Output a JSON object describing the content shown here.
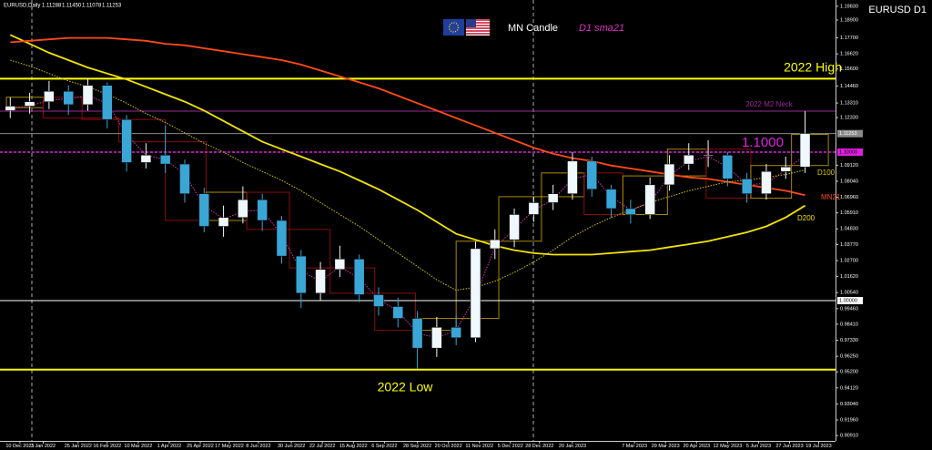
{
  "header": {
    "symbol": "EURUSD,Daily",
    "ohlc": [
      "1.11288",
      "1.11450",
      "1.11078",
      "1.11253"
    ],
    "chart_name": "EURUSD D1",
    "mn_legend": "MN Candle"
  },
  "chart_data": {
    "type": "candlestick",
    "x": [
      -5,
      5,
      15,
      25,
      35,
      45,
      55,
      65,
      75,
      85,
      95,
      105,
      115,
      125,
      135,
      145,
      155,
      165,
      175,
      185,
      195,
      205,
      215,
      225,
      235,
      245,
      255,
      265,
      275,
      285,
      295,
      305,
      315,
      325,
      335,
      345,
      355,
      365,
      375,
      385,
      395,
      405
    ],
    "open": [
      1.128,
      1.131,
      1.134,
      1.141,
      1.132,
      1.145,
      1.122,
      1.093,
      1.098,
      1.092,
      1.072,
      1.05,
      1.056,
      1.068,
      1.054,
      1.03,
      1.005,
      1.021,
      1.028,
      1.004,
      0.996,
      0.988,
      0.968,
      0.982,
      0.975,
      1.035,
      1.041,
      1.058,
      1.066,
      1.072,
      1.094,
      1.075,
      1.062,
      1.058,
      1.078,
      1.092,
      1.098,
      1.098,
      1.082,
      1.072,
      1.087,
      1.09
    ],
    "high": [
      1.137,
      1.14,
      1.148,
      1.145,
      1.15,
      1.147,
      1.125,
      1.106,
      1.118,
      1.095,
      1.076,
      1.064,
      1.077,
      1.072,
      1.057,
      1.034,
      1.026,
      1.037,
      1.031,
      1.009,
      1.002,
      0.993,
      0.989,
      0.99,
      1.04,
      1.048,
      1.062,
      1.07,
      1.078,
      1.1,
      1.097,
      1.078,
      1.068,
      1.083,
      1.098,
      1.106,
      1.108,
      1.1,
      1.086,
      1.092,
      1.097,
      1.1276
    ],
    "low": [
      1.123,
      1.126,
      1.129,
      1.125,
      1.128,
      1.116,
      1.087,
      1.089,
      1.086,
      1.066,
      1.046,
      1.043,
      1.052,
      1.047,
      1.025,
      0.995,
      1.0,
      1.016,
      0.999,
      0.99,
      0.982,
      0.954,
      0.962,
      0.97,
      0.972,
      1.028,
      1.036,
      1.053,
      1.061,
      1.068,
      1.07,
      1.056,
      1.052,
      1.055,
      1.074,
      1.088,
      1.09,
      1.077,
      1.066,
      1.068,
      1.082,
      1.086
    ],
    "close": [
      1.131,
      1.134,
      1.141,
      1.132,
      1.145,
      1.122,
      1.093,
      1.098,
      1.092,
      1.072,
      1.05,
      1.056,
      1.068,
      1.054,
      1.03,
      1.005,
      1.021,
      1.028,
      1.004,
      0.996,
      0.988,
      0.968,
      0.982,
      0.975,
      1.035,
      1.041,
      1.058,
      1.066,
      1.072,
      1.094,
      1.075,
      1.062,
      1.058,
      1.078,
      1.092,
      1.098,
      1.098,
      1.082,
      1.072,
      1.087,
      1.09,
      1.1125
    ],
    "up_color": "#f0f8ff",
    "down_color": "#3aa6d6",
    "series": [
      {
        "name": "D200",
        "color": "#f2e400",
        "style": "solid",
        "values": [
          1.179,
          1.173,
          1.167,
          1.162,
          1.157,
          1.153,
          1.149,
          1.144,
          1.139,
          1.134,
          1.128,
          1.121,
          1.114,
          1.107,
          1.102,
          1.097,
          1.092,
          1.087,
          1.081,
          1.075,
          1.068,
          1.061,
          1.053,
          1.045,
          1.041,
          1.037,
          1.034,
          1.032,
          1.031,
          1.031,
          1.031,
          1.032,
          1.033,
          1.034,
          1.036,
          1.038,
          1.04,
          1.043,
          1.046,
          1.05,
          1.056,
          1.064
        ]
      },
      {
        "name": "MN21",
        "color": "#ff4a1a",
        "style": "solid",
        "values": [
          1.174,
          1.175,
          1.176,
          1.177,
          1.177,
          1.177,
          1.176,
          1.175,
          1.173,
          1.172,
          1.17,
          1.168,
          1.166,
          1.164,
          1.162,
          1.159,
          1.155,
          1.151,
          1.147,
          1.143,
          1.138,
          1.133,
          1.128,
          1.123,
          1.118,
          1.113,
          1.108,
          1.103,
          1.099,
          1.096,
          1.094,
          1.091,
          1.089,
          1.087,
          1.085,
          1.083,
          1.082,
          1.08,
          1.078,
          1.076,
          1.074,
          1.071
        ]
      },
      {
        "name": "D100",
        "color": "#d8c800",
        "style": "dotted",
        "values": [
          1.162,
          1.158,
          1.153,
          1.148,
          1.144,
          1.139,
          1.133,
          1.126,
          1.12,
          1.113,
          1.106,
          1.1,
          1.093,
          1.087,
          1.081,
          1.074,
          1.066,
          1.058,
          1.05,
          1.041,
          1.032,
          1.023,
          1.014,
          1.007,
          1.009,
          1.013,
          1.019,
          1.026,
          1.034,
          1.043,
          1.05,
          1.056,
          1.061,
          1.066,
          1.07,
          1.074,
          1.077,
          1.08,
          1.081,
          1.083,
          1.085,
          1.088
        ]
      },
      {
        "name": "D1 sma21",
        "color": "#e030c0",
        "style": "dotted",
        "values": [
          1.13,
          1.131,
          1.135,
          1.136,
          1.138,
          1.133,
          1.112,
          1.098,
          1.095,
          1.085,
          1.064,
          1.055,
          1.06,
          1.061,
          1.044,
          1.02,
          1.013,
          1.023,
          1.015,
          1.001,
          0.993,
          0.978,
          0.975,
          0.98,
          1.003,
          1.036,
          1.048,
          1.061,
          1.068,
          1.082,
          1.085,
          1.07,
          1.061,
          1.066,
          1.084,
          1.094,
          1.097,
          1.09,
          1.078,
          1.079,
          1.088,
          1.098
        ]
      }
    ],
    "mn_candles": {
      "bounds": [
        -7,
        12,
        32,
        51,
        75,
        96,
        117,
        139,
        160,
        183,
        204,
        225,
        247,
        269,
        291,
        311,
        334,
        354,
        377,
        398,
        417
      ],
      "open": [
        1.13,
        1.137,
        1.123,
        1.122,
        1.107,
        1.054,
        1.073,
        1.048,
        1.022,
        1.005,
        0.98,
        0.988,
        1.04,
        1.07,
        1.086,
        1.058,
        1.084,
        1.102,
        1.069,
        1.091
      ],
      "close": [
        1.137,
        1.123,
        1.122,
        1.107,
        1.054,
        1.073,
        1.048,
        1.022,
        1.005,
        0.98,
        0.988,
        1.04,
        1.07,
        1.086,
        1.058,
        1.084,
        1.102,
        1.069,
        1.091,
        1.112
      ],
      "up_color": "#a88a00",
      "down_color": "#8a0c0c"
    },
    "levels": [
      {
        "name": "2022 High",
        "value": 1.1495,
        "color": "#ffff00",
        "width": 2
      },
      {
        "name": "2022 Low",
        "value": 0.9535,
        "color": "#ffff00",
        "width": 2
      },
      {
        "name": "2022 M2 Neck",
        "value": 1.1276,
        "color": "#9a2a9a",
        "width": 1
      },
      {
        "name": "1.1000",
        "value": 1.1,
        "axis_label": "1.10000",
        "color": "#e020e0",
        "width": 1.5,
        "dash": true
      },
      {
        "value": 1.0,
        "axis_label": "1.00000",
        "color": "#ffffff",
        "width": 1
      },
      {
        "value": 1.1125,
        "axis_label": "1.11253",
        "color": "#8a8a8a",
        "width": 1
      }
    ],
    "xlim": [
      -10.3,
      420.7
    ],
    "ylim": [
      0.9055,
      1.2025
    ],
    "yticks": [
      {
        "value": 1.1983,
        "label": "1.19830"
      },
      {
        "value": 1.189,
        "label": "1.18900"
      },
      {
        "value": 1.177,
        "label": "1.17700"
      },
      {
        "value": 1.1662,
        "label": "1.16620"
      },
      {
        "value": 1.156,
        "label": "1.15600"
      },
      {
        "value": 1.1446,
        "label": "1.14460"
      },
      {
        "value": 1.1331,
        "label": "1.13310"
      },
      {
        "value": 1.1233,
        "label": "1.12330"
      },
      {
        "value": 1.0912,
        "label": "1.09120"
      },
      {
        "value": 1.0804,
        "label": "1.08040"
      },
      {
        "value": 1.0696,
        "label": "1.06960"
      },
      {
        "value": 1.0591,
        "label": "1.05910"
      },
      {
        "value": 1.0483,
        "label": "1.04830"
      },
      {
        "value": 1.0377,
        "label": "1.03770"
      },
      {
        "value": 1.027,
        "label": "1.02700"
      },
      {
        "value": 1.0162,
        "label": "1.01620"
      },
      {
        "value": 1.0054,
        "label": "1.00540"
      },
      {
        "value": 0.9946,
        "label": "0.99460"
      },
      {
        "value": 0.9841,
        "label": "0.98410"
      },
      {
        "value": 0.9733,
        "label": "0.97330"
      },
      {
        "value": 0.9625,
        "label": "0.96250"
      },
      {
        "value": 0.952,
        "label": "0.95200"
      },
      {
        "value": 0.9412,
        "label": "0.94120"
      },
      {
        "value": 0.9304,
        "label": "0.93040"
      },
      {
        "value": 0.9196,
        "label": "0.91960"
      },
      {
        "value": 0.9091,
        "label": "0.90910"
      }
    ],
    "xticks": [
      {
        "value": 0,
        "label": "10 Dec 2021"
      },
      {
        "value": 12,
        "label": "3 Jan 2022"
      },
      {
        "value": 30,
        "label": "25 Jan 2022"
      },
      {
        "value": 45,
        "label": "16 Feb 2022"
      },
      {
        "value": 61,
        "label": "10 Mar 2022"
      },
      {
        "value": 77,
        "label": "1 Apr 2022"
      },
      {
        "value": 93,
        "label": "25 Apr 2022"
      },
      {
        "value": 108,
        "label": "17 May 2022"
      },
      {
        "value": 123,
        "label": "8 Jun 2022"
      },
      {
        "value": 140,
        "label": "30 Jun 2022"
      },
      {
        "value": 156,
        "label": "22 Jul 2022"
      },
      {
        "value": 172,
        "label": "15 Aug 2022"
      },
      {
        "value": 188,
        "label": "6 Sep 2022"
      },
      {
        "value": 205,
        "label": "28 Sep 2022"
      },
      {
        "value": 221,
        "label": "20 Oct 2022"
      },
      {
        "value": 237,
        "label": "11 Nov 2022"
      },
      {
        "value": 253,
        "label": "5 Dec 2022"
      },
      {
        "value": 268,
        "label": "28 Dec 2022"
      },
      {
        "value": 285,
        "label": "20 Jan 2023"
      },
      {
        "value": 317,
        "label": "7 Mar 2023"
      },
      {
        "value": 333,
        "label": "29 Mar 2023"
      },
      {
        "value": 349,
        "label": "20 Apr 2023"
      },
      {
        "value": 365,
        "label": "12 May 2023"
      },
      {
        "value": 381,
        "label": "5 Jun 2023"
      },
      {
        "value": 397,
        "label": "27 Jun 2023"
      },
      {
        "value": 412,
        "label": "19 Jul 2023"
      }
    ]
  }
}
